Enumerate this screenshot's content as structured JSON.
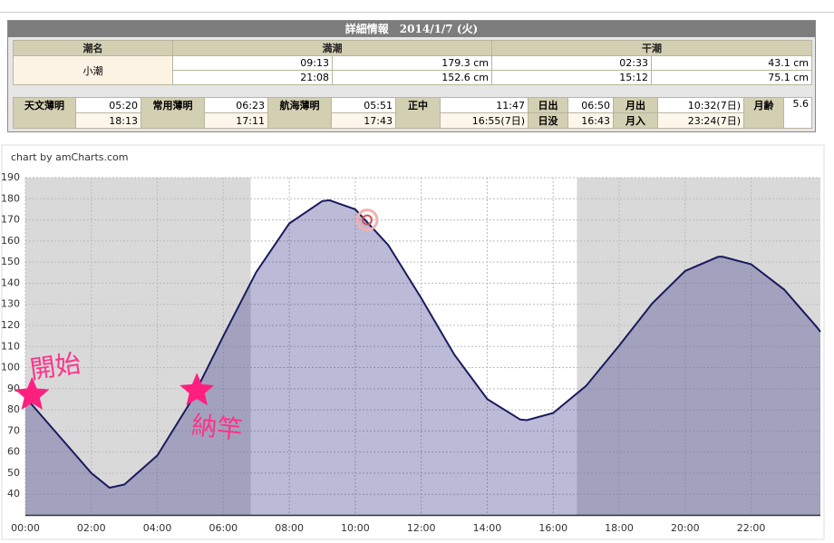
{
  "table": {
    "title": "詳細情報",
    "date": "2014/1/7 (火)",
    "header": [
      "潮名",
      "満潮",
      "干潮"
    ],
    "tide_name": "小潮",
    "tide_rows": [
      [
        "09:13",
        "179.3 cm",
        "02:33",
        "43.1 cm"
      ],
      [
        "21:08",
        "152.6 cm",
        "15:12",
        "75.1 cm"
      ]
    ],
    "astro": [
      {
        "label": "天文薄明",
        "values": [
          "05:20",
          "18:13"
        ]
      },
      {
        "label": "常用薄明",
        "values": [
          "06:23",
          "17:11"
        ]
      },
      {
        "label": "航海薄明",
        "values": [
          "05:51",
          "17:43"
        ]
      },
      {
        "label": "正中",
        "values": [
          "11:47",
          "16:55(7日)"
        ]
      },
      {
        "labels": [
          "日出",
          "日没"
        ],
        "values": [
          "06:50",
          "16:43"
        ]
      },
      {
        "labels": [
          "月出",
          "月入"
        ],
        "values": [
          "10:32(7日)",
          "23:24(7日)"
        ]
      },
      {
        "label": "月齢",
        "values": [
          "5.6"
        ]
      }
    ]
  },
  "chart_data": {
    "type": "area",
    "credit": "chart by amCharts.com",
    "x": [
      0,
      1,
      2,
      2.55,
      3,
      4,
      5,
      6,
      7,
      8,
      9,
      9.22,
      10,
      11,
      12,
      13,
      14,
      15,
      15.2,
      16,
      17,
      18,
      19,
      20,
      21,
      21.13,
      22,
      23,
      24,
      24.1
    ],
    "series": [
      {
        "color": "#1a1a5e",
        "fill": "#3c3c8c",
        "values": [
          86,
          68,
          50,
          43.1,
          44.6,
          58.4,
          83.6,
          114.9,
          145.3,
          168.3,
          178.9,
          179.3,
          175.0,
          158.1,
          132.9,
          106.2,
          85.1,
          75.4,
          75.1,
          78.5,
          91.4,
          110.4,
          130.4,
          145.8,
          152.5,
          152.6,
          149,
          137,
          119,
          117
        ]
      }
    ],
    "shaded_ranges": [
      [
        0,
        6.83
      ],
      [
        16.72,
        24.1
      ]
    ],
    "shade_color": "#d9d9d9",
    "xlim": [
      0,
      24.1
    ],
    "ylim": [
      30,
      190
    ],
    "xticks": [
      {
        "value": 0,
        "label": "00:00"
      },
      {
        "value": 2,
        "label": "02:00"
      },
      {
        "value": 4,
        "label": "04:00"
      },
      {
        "value": 6,
        "label": "06:00"
      },
      {
        "value": 8,
        "label": "08:00"
      },
      {
        "value": 10,
        "label": "10:00"
      },
      {
        "value": 12,
        "label": "12:00"
      },
      {
        "value": 14,
        "label": "14:00"
      },
      {
        "value": 16,
        "label": "16:00"
      },
      {
        "value": 18,
        "label": "18:00"
      },
      {
        "value": 20,
        "label": "20:00"
      },
      {
        "value": 22,
        "label": "22:00"
      }
    ],
    "yticks": [
      40,
      50,
      60,
      70,
      80,
      90,
      100,
      110,
      120,
      130,
      140,
      150,
      160,
      170,
      180,
      190
    ],
    "grid": true,
    "cursor_marker": {
      "x": 10.36,
      "y": 170
    },
    "annotations": [
      {
        "text": "開始",
        "x": 0.2,
        "y": 87
      },
      {
        "text": "納竿",
        "x": 5.2,
        "y": 89
      }
    ]
  }
}
